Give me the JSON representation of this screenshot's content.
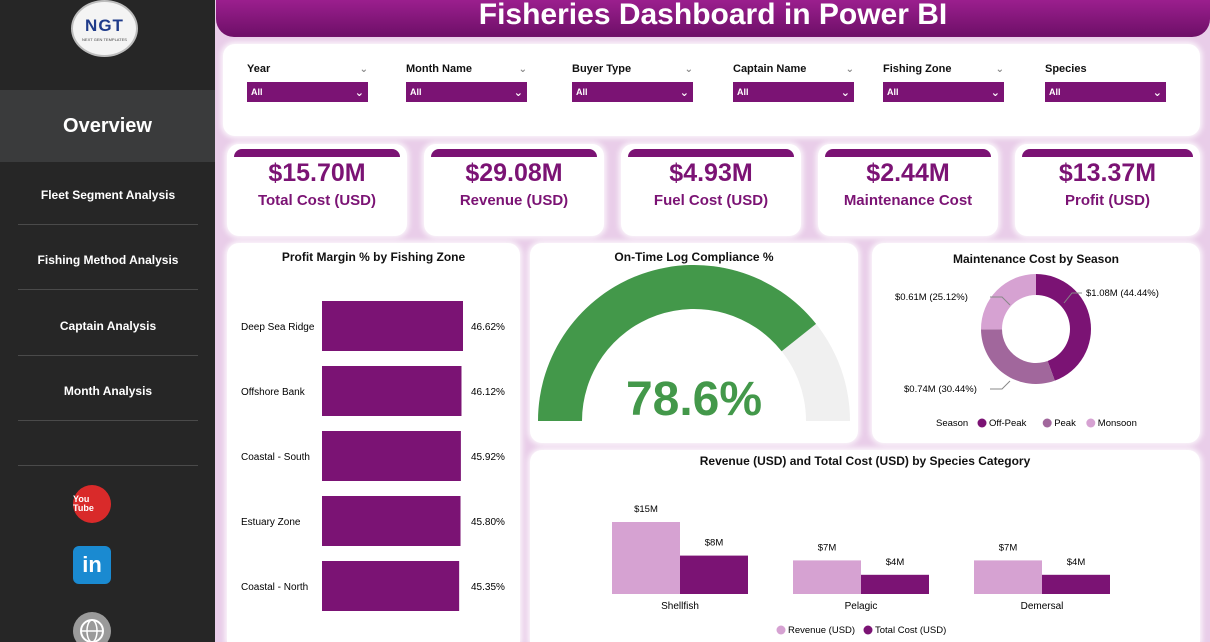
{
  "header": {
    "title": "Fisheries Dashboard in Power BI"
  },
  "logo": {
    "text": "NGT",
    "subtext": "NEXT GEN TEMPLATES"
  },
  "sidebar": {
    "active": "Overview",
    "items": [
      {
        "label": "Fleet Segment Analysis"
      },
      {
        "label": "Fishing Method Analysis"
      },
      {
        "label": "Captain Analysis"
      },
      {
        "label": "Month Analysis"
      }
    ],
    "social": {
      "youtube": "You Tube",
      "linkedin": "in"
    }
  },
  "filters": [
    {
      "label": "Year",
      "value": "All"
    },
    {
      "label": "Month Name",
      "value": "All"
    },
    {
      "label": "Buyer Type",
      "value": "All"
    },
    {
      "label": "Captain Name",
      "value": "All"
    },
    {
      "label": "Fishing Zone",
      "value": "All"
    },
    {
      "label": "Species",
      "value": "All"
    }
  ],
  "kpis": [
    {
      "value": "$15.70M",
      "label": "Total Cost (USD)"
    },
    {
      "value": "$29.08M",
      "label": "Revenue (USD)"
    },
    {
      "value": "$4.93M",
      "label": "Fuel Cost (USD)"
    },
    {
      "value": "$2.44M",
      "label": "Maintenance Cost"
    },
    {
      "value": "$13.37M",
      "label": "Profit (USD)"
    }
  ],
  "colors": {
    "primary": "#7b1374",
    "light": "#d6a2d2",
    "mid": "#a1679c",
    "gauge": "#43984a",
    "gauge_bg": "#f0f0f0"
  },
  "chart_data": [
    {
      "type": "bar",
      "orientation": "horizontal",
      "title": "Profit Margin % by Fishing Zone",
      "categories": [
        "Deep Sea Ridge",
        "Offshore Bank",
        "Coastal - South",
        "Estuary Zone",
        "Coastal - North"
      ],
      "values": [
        46.62,
        46.12,
        45.92,
        45.8,
        45.35
      ],
      "labels": [
        "46.62%",
        "46.12%",
        "45.92%",
        "45.80%",
        "45.35%"
      ]
    },
    {
      "type": "gauge",
      "title": "On-Time Log Compliance %",
      "value": 78.6,
      "max": 100,
      "label": "78.6%"
    },
    {
      "type": "pie",
      "title": "Maintenance Cost by Season",
      "legend_title": "Season",
      "series": [
        {
          "name": "Off-Peak",
          "value": 1.08,
          "label": "$1.08M (44.44%)"
        },
        {
          "name": "Peak",
          "value": 0.74,
          "label": "$0.74M (30.44%)"
        },
        {
          "name": "Monsoon",
          "value": 0.61,
          "label": "$0.61M (25.12%)"
        }
      ]
    },
    {
      "type": "bar",
      "title": "Revenue (USD) and Total Cost (USD) by Species Category",
      "categories": [
        "Shellfish",
        "Pelagic",
        "Demersal"
      ],
      "series": [
        {
          "name": "Revenue (USD)",
          "values": [
            15,
            7,
            7
          ],
          "labels": [
            "$15M",
            "$7M",
            "$7M"
          ]
        },
        {
          "name": "Total Cost (USD)",
          "values": [
            8,
            4,
            4
          ],
          "labels": [
            "$8M",
            "$4M",
            "$4M"
          ]
        }
      ],
      "legend": "bottom"
    }
  ]
}
